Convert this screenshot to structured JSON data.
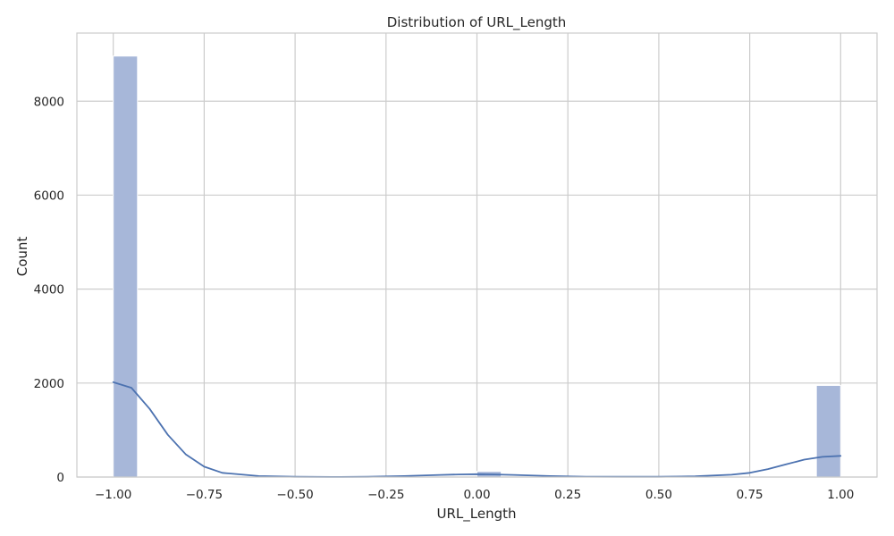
{
  "chart_data": {
    "type": "bar",
    "title": "Distribution of URL_Length",
    "xlabel": "URL_Length",
    "ylabel": "Count",
    "xlim": [
      -1.1,
      1.1
    ],
    "ylim": [
      0,
      9450
    ],
    "x_ticks": [
      "−1.00",
      "−0.75",
      "−0.50",
      "−0.25",
      "0.00",
      "0.25",
      "0.50",
      "0.75",
      "1.00"
    ],
    "x_tick_values": [
      -1.0,
      -0.75,
      -0.5,
      -0.25,
      0.0,
      0.25,
      0.5,
      0.75,
      1.0
    ],
    "y_ticks": [
      "0",
      "2000",
      "4000",
      "6000",
      "8000"
    ],
    "y_tick_values": [
      0,
      2000,
      4000,
      6000,
      8000
    ],
    "grid": true,
    "bin_edges": [
      -1.0,
      -0.9333,
      -0.8667,
      -0.8,
      -0.7333,
      -0.6667,
      -0.6,
      -0.5333,
      -0.4667,
      -0.4,
      -0.3333,
      -0.2667,
      -0.2,
      -0.1333,
      -0.0667,
      0.0,
      0.0667,
      0.1333,
      0.2,
      0.2667,
      0.3333,
      0.4,
      0.4667,
      0.5333,
      0.6,
      0.6667,
      0.7333,
      0.8,
      0.8667,
      0.9333,
      1.0
    ],
    "counts": [
      8960,
      0,
      0,
      0,
      0,
      0,
      0,
      0,
      0,
      0,
      0,
      0,
      0,
      0,
      0,
      120,
      0,
      0,
      0,
      0,
      0,
      0,
      0,
      0,
      0,
      0,
      0,
      0,
      0,
      1950
    ],
    "kde": {
      "x": [
        -1.0,
        -0.95,
        -0.9,
        -0.85,
        -0.8,
        -0.75,
        -0.7,
        -0.6,
        -0.5,
        -0.4,
        -0.3,
        -0.2,
        -0.1,
        -0.05,
        0.0,
        0.05,
        0.1,
        0.2,
        0.3,
        0.4,
        0.5,
        0.6,
        0.7,
        0.75,
        0.8,
        0.85,
        0.9,
        0.95,
        1.0
      ],
      "y": [
        2020,
        1900,
        1450,
        900,
        480,
        220,
        90,
        20,
        5,
        2,
        5,
        20,
        45,
        55,
        60,
        55,
        45,
        20,
        8,
        5,
        5,
        15,
        50,
        90,
        170,
        270,
        370,
        430,
        450
      ]
    },
    "colors": {
      "bar_fill": "#a7b7d9",
      "bar_edge": "#ffffff",
      "kde_line": "#4c72b0",
      "grid": "#cccccc",
      "spine": "#cccccc",
      "text": "#262626"
    }
  }
}
